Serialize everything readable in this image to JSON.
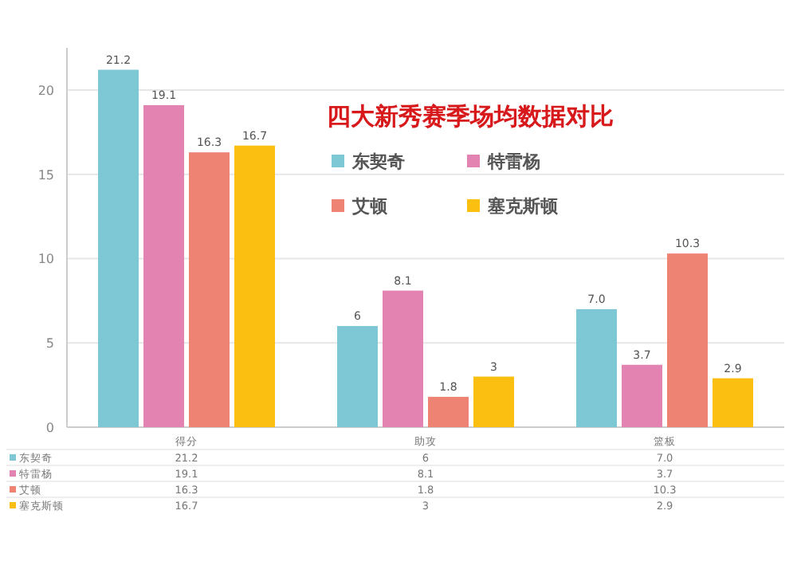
{
  "chart_data": {
    "type": "bar",
    "title": "四大新秀赛季场均数据对比",
    "categories": [
      "得分",
      "助攻",
      "篮板"
    ],
    "series": [
      {
        "name": "东契奇",
        "color": "#7ec8d6",
        "values": [
          21.2,
          6,
          7.0
        ],
        "value_labels": [
          "21.2",
          "6",
          "7.0"
        ]
      },
      {
        "name": "特雷杨",
        "color": "#e283b2",
        "values": [
          19.1,
          8.1,
          3.7
        ],
        "value_labels": [
          "19.1",
          "8.1",
          "3.7"
        ]
      },
      {
        "name": "艾顿",
        "color": "#ef8373",
        "values": [
          16.3,
          1.8,
          10.3
        ],
        "value_labels": [
          "16.3",
          "1.8",
          "10.3"
        ]
      },
      {
        "name": "塞克斯顿",
        "color": "#fbbf12",
        "values": [
          16.7,
          3,
          2.9
        ],
        "value_labels": [
          "16.7",
          "3",
          "2.9"
        ]
      }
    ],
    "ylim": [
      0,
      22.5
    ],
    "yticks": [
      0,
      5,
      10,
      15,
      20
    ],
    "grid": "y",
    "legend": "top right"
  }
}
